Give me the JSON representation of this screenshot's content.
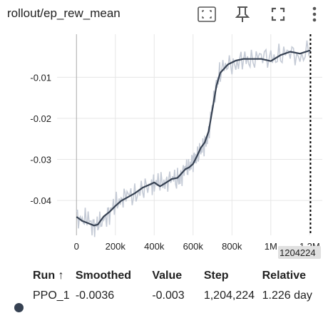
{
  "header": {
    "title": "rollout/ep_rew_mean",
    "icons": [
      "fit-domain-icon",
      "pin-icon",
      "fullscreen-icon",
      "more-vert-icon"
    ]
  },
  "chart_data": {
    "type": "line",
    "xlabel": "",
    "ylabel": "",
    "x_ticks": [
      {
        "v": 0,
        "label": "0"
      },
      {
        "v": 200000,
        "label": "200k"
      },
      {
        "v": 400000,
        "label": "400k"
      },
      {
        "v": 600000,
        "label": "600k"
      },
      {
        "v": 800000,
        "label": "800k"
      },
      {
        "v": 1000000,
        "label": "1M"
      },
      {
        "v": 1200000,
        "label": "1.2M"
      }
    ],
    "y_ticks": [
      {
        "v": -0.01,
        "label": "-0.01"
      },
      {
        "v": -0.02,
        "label": "-0.02"
      },
      {
        "v": -0.03,
        "label": "-0.03"
      },
      {
        "v": -0.04,
        "label": "-0.04"
      }
    ],
    "xlim": [
      -100000,
      1265000
    ],
    "ylim": [
      -0.0485,
      0.0005
    ],
    "grid": true,
    "cursor_step": 1204224,
    "cursor_label": "1204224",
    "series": [
      {
        "name": "PPO_1",
        "color": "#364152",
        "raw_color": "#c5cbd6",
        "x": [
          0,
          30000,
          60000,
          90000,
          110000,
          140000,
          170000,
          200000,
          230000,
          260000,
          300000,
          340000,
          380000,
          400000,
          430000,
          460000,
          490000,
          520000,
          540000,
          560000,
          580000,
          600000,
          620000,
          640000,
          660000,
          680000,
          700000,
          720000,
          740000,
          780000,
          820000,
          860000,
          900000,
          950000,
          1000000,
          1050000,
          1100000,
          1150000,
          1204224
        ],
        "y": [
          -0.044,
          -0.0445,
          -0.045,
          -0.046,
          -0.0463,
          -0.0445,
          -0.043,
          -0.041,
          -0.0395,
          -0.039,
          -0.0385,
          -0.0375,
          -0.0365,
          -0.0355,
          -0.036,
          -0.0352,
          -0.0348,
          -0.035,
          -0.034,
          -0.0325,
          -0.0315,
          -0.0305,
          -0.029,
          -0.0275,
          -0.0265,
          -0.0235,
          -0.0175,
          -0.0115,
          -0.0085,
          -0.007,
          -0.0065,
          -0.006,
          -0.0055,
          -0.005,
          -0.0055,
          -0.0045,
          -0.0042,
          -0.0048,
          -0.0036
        ]
      }
    ]
  },
  "runs_table": {
    "headers": {
      "run": "Run ↑",
      "smoothed": "Smoothed",
      "value": "Value",
      "step": "Step",
      "relative": "Relative"
    },
    "rows": [
      {
        "run": "PPO_1",
        "smoothed": "-0.0036",
        "value": "-0.003",
        "step": "1,204,224",
        "relative": "1.226 day",
        "color": "#364152"
      }
    ]
  }
}
